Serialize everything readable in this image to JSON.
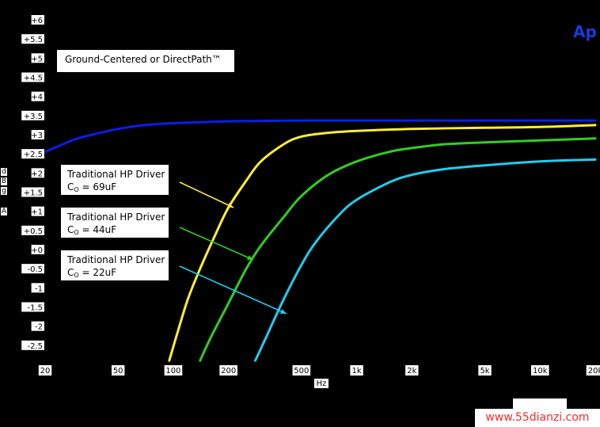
{
  "chart_data": {
    "type": "line",
    "xscale": "log",
    "xlim": [
      20,
      20000
    ],
    "ylim": [
      -3,
      6
    ],
    "x_ticks": [
      20,
      50,
      100,
      200,
      500,
      1000,
      2000,
      5000,
      10000,
      20000
    ],
    "x_tick_labels": [
      "20",
      "50",
      "100",
      "200",
      "500",
      "1k",
      "2k",
      "5k",
      "10k",
      "20k"
    ],
    "y_ticks": [
      6,
      5.5,
      5,
      4.5,
      4,
      3.5,
      3,
      2.5,
      2,
      1.5,
      1,
      0.5,
      0,
      -0.5,
      -1,
      -1.5,
      -2,
      -2.5
    ],
    "y_tick_labels": [
      "+6",
      "+5.5",
      "+5",
      "+4.5",
      "+4",
      "+3.5",
      "+3",
      "+2.5",
      "+2",
      "+1.5",
      "+1",
      "+0.5",
      "+0",
      "-0.5",
      "-1",
      "-1.5",
      "-2",
      "-2.5"
    ],
    "xlabel": "Hz",
    "ylabel": "d B g A",
    "series": [
      {
        "name": "Ground-Centered or DirectPath™",
        "color": "#0a1ee6",
        "x": [
          20,
          25,
          30,
          40,
          50,
          70,
          100,
          150,
          200,
          300,
          500,
          1000,
          2000,
          5000,
          10000,
          20000
        ],
        "y": [
          2.55,
          2.75,
          2.9,
          3.05,
          3.15,
          3.25,
          3.3,
          3.33,
          3.35,
          3.36,
          3.37,
          3.37,
          3.37,
          3.37,
          3.37,
          3.37
        ]
      },
      {
        "name": "Traditional HP Driver Co = 69uF",
        "color": "#ffee33",
        "x": [
          95,
          105,
          120,
          140,
          170,
          200,
          250,
          300,
          400,
          500,
          700,
          1000,
          2000,
          5000,
          10000,
          20000
        ],
        "y": [
          -2.9,
          -2.2,
          -1.3,
          -0.5,
          0.4,
          1.1,
          1.8,
          2.3,
          2.75,
          2.95,
          3.05,
          3.1,
          3.15,
          3.18,
          3.2,
          3.25
        ]
      },
      {
        "name": "Traditional HP Driver Co = 44uF",
        "color": "#33cc22",
        "x": [
          140,
          160,
          200,
          250,
          300,
          400,
          500,
          700,
          1000,
          1500,
          2000,
          3000,
          5000,
          10000,
          20000
        ],
        "y": [
          -2.9,
          -2.3,
          -1.4,
          -0.5,
          0.1,
          0.85,
          1.4,
          1.95,
          2.3,
          2.55,
          2.65,
          2.75,
          2.8,
          2.85,
          2.9
        ]
      },
      {
        "name": "Traditional HP Driver Co = 22uF",
        "color": "#22ccee",
        "x": [
          280,
          320,
          400,
          500,
          600,
          800,
          1000,
          1500,
          2000,
          3000,
          5000,
          10000,
          20000
        ],
        "y": [
          -2.9,
          -2.3,
          -1.3,
          -0.4,
          0.2,
          0.9,
          1.3,
          1.75,
          1.95,
          2.1,
          2.2,
          2.3,
          2.35
        ]
      }
    ]
  },
  "legend_label": "Ground-Centered or DirectPath™",
  "annotations": [
    {
      "line1": "Traditional HP Driver",
      "sub": "O",
      "pre": "C",
      "post": " = 69uF"
    },
    {
      "line1": "Traditional HP Driver",
      "sub": "O",
      "pre": "C",
      "post": " = 44uF"
    },
    {
      "line1": "Traditional HP Driver",
      "sub": "O",
      "pre": "C",
      "post": " = 22uF"
    }
  ],
  "ylabel_letters": [
    "d",
    "B",
    "g",
    "A"
  ],
  "logo_text": "Ap",
  "watermark": "www.55dianzi.com"
}
